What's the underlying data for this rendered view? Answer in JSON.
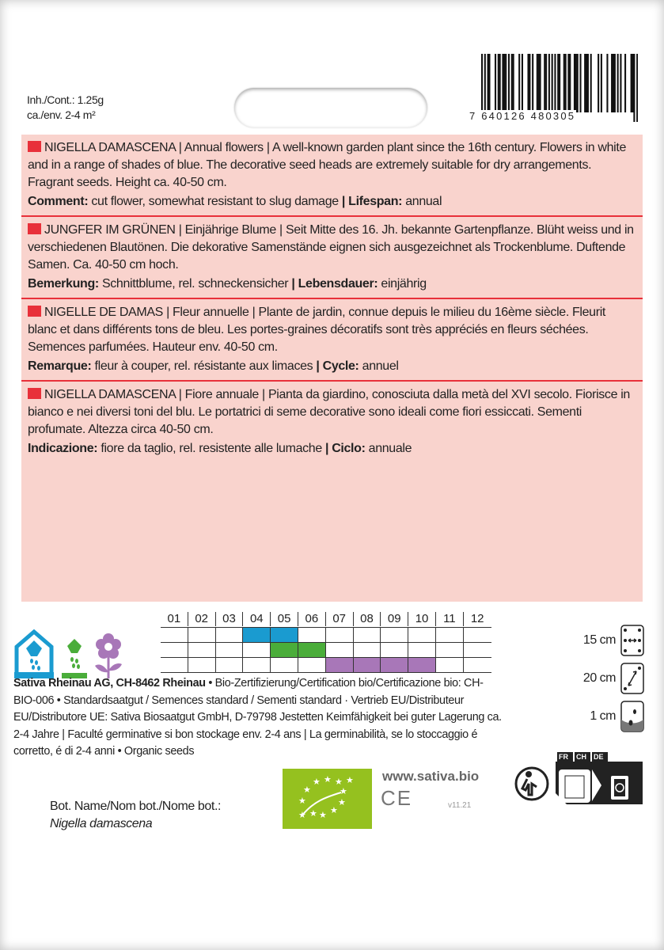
{
  "contents": {
    "line1": "Inh./Cont.: 1.25g",
    "line2": "ca./env. 2-4 m²"
  },
  "barcode": {
    "number": "7 640126 480305"
  },
  "sections": [
    {
      "title": "NIGELLA DAMASCENA",
      "text": " | Annual flowers | A well-known garden plant since the 16th century. Flowers in white and in a range of shades of blue. The decorative seed heads are extremely suitable for dry arrange­ments. Fragrant seeds. Height ca. 40-50 cm.",
      "label1": "Comment:",
      "value1": " cut flower, somewhat resistant to slug damage ",
      "label2": "| Lifespan:",
      "value2": " annual"
    },
    {
      "title": "JUNGFER IM GRÜNEN",
      "text": " | Einjährige Blume | Seit Mitte des 16. Jh. bekannte Gartenpflanze. Blüht weiss und in verschiedenen Blautönen. Die dekorative Samenstände eignen sich ausgezeichnet als Trocken­blume. Duftende Samen. Ca. 40-50 cm hoch.",
      "label1": "Bemerkung:",
      "value1": " Schnittblume, rel. schneckensicher ",
      "label2": "| Lebensdauer:",
      "value2": " einjährig"
    },
    {
      "title": "NIGELLE DE DAMAS",
      "text": " | Fleur annuelle | Plante de jardin, connue depuis le milieu du 16ème siècle. Fleurit blanc et dans différents tons de bleu. Les portes-graines décoratifs sont très appréciés en fleurs séchées. Semences parfumées. Hauteur env. 40-50 cm.",
      "label1": "Remarque:",
      "value1": " fleur à couper, rel. résistante aux limaces ",
      "label2": "| Cycle:",
      "value2": " annuel"
    },
    {
      "title": "NIGELLA DAMASCENA",
      "text": " | Fiore annuale | Pianta da giardino, conosciuta dalla metà del XVI secolo. Fiorisce in bianco e nei diversi toni del blu. Le portatrici di seme decorative sono ideali come fiori essiccati. Sementi profumate. Altezza circa 40-50 cm.",
      "label1": "Indicazione:",
      "value1": " fiore da taglio, rel. resistente alle lumache ",
      "label2": "| Ciclo:",
      "value2": " annuale"
    }
  ],
  "calendar": {
    "months": [
      "01",
      "02",
      "03",
      "04",
      "05",
      "06",
      "07",
      "08",
      "09",
      "10",
      "11",
      "12"
    ],
    "rows": [
      {
        "icon": "greenhouse-sowing-icon",
        "color": "#1a9bd0",
        "start": 4,
        "end": 5
      },
      {
        "icon": "outdoor-sowing-icon",
        "color": "#4aad3a",
        "start": 5,
        "end": 6
      },
      {
        "icon": "flower-icon",
        "color": "#a877b8",
        "start": 7,
        "end": 10
      }
    ]
  },
  "company": {
    "name": "Sativa Rheinau AG, CH-8462 Rheinau",
    "text": " • Bio-Zertifizierung/Certification bio/Certifi­cazione bio: CH-BIO-006 • Standardsaatgut / Semences standard / Sementi standard · Vertrieb EU/Distributeur EU/Distributore UE: Sativa Biosaatgut GmbH, D-79798 Jestetten Keimfähigkeit bei guter Lagerung ca. 2-4 Jahre | Faculté germinative si bon stockage env. 2-4 ans | La germinabilità, se lo stoccaggio é corretto, é di 2-4 anni • Organic seeds"
  },
  "spacing": [
    {
      "value": "15 cm",
      "icon": "row-spacing-icon"
    },
    {
      "value": "20 cm",
      "icon": "plant-spacing-icon"
    },
    {
      "value": "1 cm",
      "icon": "sowing-depth-icon"
    }
  ],
  "botanical": {
    "label": "Bot. Name/Nom bot./Nome bot.:",
    "name": "Nigella damascena"
  },
  "website": "www.sativa.bio",
  "ce": "CE",
  "version": "v11.21",
  "recycling": {
    "countries": [
      "FR",
      "CH",
      "DE"
    ]
  },
  "colors": {
    "panel": "#f9d3cd",
    "accent": "#e8303a",
    "eu_green": "#95c11f"
  }
}
